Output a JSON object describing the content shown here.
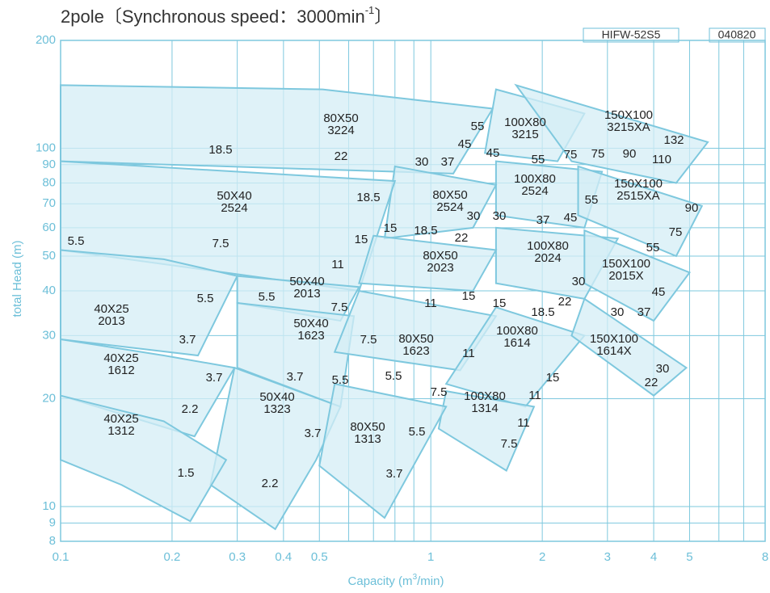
{
  "chart_data": {
    "type": "coverage",
    "title": "2pole〔Synchronous speed：3000min",
    "title_sup": "-1",
    "title_end": "〕",
    "code": "HIFW-52S5",
    "date_code": "040820",
    "x_label": "Capacity (m",
    "x_label_sup": "3",
    "x_label_end": "/min)",
    "y_label": "total Head (m)",
    "log_x": true,
    "log_y": true,
    "grid": true,
    "xlim": [
      0.1,
      8
    ],
    "ylim": [
      8,
      200
    ],
    "xticks": [
      0.1,
      0.2,
      0.3,
      0.4,
      0.5,
      1,
      2,
      3,
      4,
      5,
      8
    ],
    "xminor": [
      0.6,
      0.7,
      0.8,
      0.9,
      6,
      7
    ],
    "yticks": [
      8,
      9,
      10,
      20,
      30,
      40,
      50,
      60,
      70,
      80,
      90,
      100,
      200
    ],
    "fill": "#d4edf5",
    "edge": "#7ec8de",
    "regions": [
      {
        "name": [
          "80X50",
          "3224"
        ],
        "capacity": [
          0.1,
          0.51,
          1.47,
          1.15,
          0.1
        ],
        "head": [
          150,
          146,
          129,
          85,
          92
        ]
      },
      {
        "name": [
          "100X80",
          "3215"
        ],
        "capacity": [
          1.5,
          2.6,
          2.2,
          1.4
        ],
        "head": [
          146,
          125,
          92,
          97
        ]
      },
      {
        "name": [
          "150X100",
          "3215XA"
        ],
        "capacity": [
          1.7,
          5.6,
          4.6,
          2.4
        ],
        "head": [
          150,
          104,
          80,
          92
        ]
      },
      {
        "name": [
          "100X80",
          "2524"
        ],
        "capacity": [
          1.5,
          2.9,
          2.6,
          1.5
        ],
        "head": [
          92,
          86,
          60,
          65
        ]
      },
      {
        "name": [
          "150X100",
          "2515XA"
        ],
        "capacity": [
          2.5,
          5.4,
          4.6,
          2.5
        ],
        "head": [
          89,
          69,
          50,
          65
        ]
      },
      {
        "name": [
          "80X50",
          "2524"
        ],
        "capacity": [
          0.8,
          1.5,
          1.3,
          0.75
        ],
        "head": [
          89,
          79,
          60,
          56
        ]
      },
      {
        "name": [
          "50X40",
          "2524"
        ],
        "capacity": [
          0.1,
          0.8,
          0.64,
          0.1
        ],
        "head": [
          92,
          81,
          40,
          52
        ]
      },
      {
        "name": [
          "100X80",
          "2024"
        ],
        "capacity": [
          1.5,
          3.2,
          2.6,
          1.5
        ],
        "head": [
          60,
          56,
          38,
          42
        ]
      },
      {
        "name": [
          "80X50",
          "2023"
        ],
        "capacity": [
          0.7,
          1.5,
          1.3,
          0.64
        ],
        "head": [
          57,
          52,
          40,
          42
        ]
      },
      {
        "name": [
          "150X100",
          "2015X"
        ],
        "capacity": [
          2.6,
          5.0,
          4.0,
          2.6
        ],
        "head": [
          59,
          45,
          33,
          42
        ]
      },
      {
        "name": [
          "50X40",
          "2013"
        ],
        "capacity": [
          0.3,
          0.64,
          0.57,
          0.3
        ],
        "head": [
          44,
          41,
          33,
          37
        ]
      },
      {
        "name": [
          "40X25",
          "2013"
        ],
        "capacity": [
          0.1,
          0.19,
          0.3,
          0.235,
          0.1
        ],
        "head": [
          52,
          49,
          44,
          26.4,
          29.3
        ]
      },
      {
        "name": [
          "50X40",
          "1623"
        ],
        "capacity": [
          0.3,
          0.62,
          0.57,
          0.3
        ],
        "head": [
          37,
          34,
          19,
          24.4
        ]
      },
      {
        "name": [
          "80X50",
          "1623"
        ],
        "capacity": [
          0.64,
          1.5,
          1.2,
          0.55
        ],
        "head": [
          40,
          34,
          24,
          27
        ]
      },
      {
        "name": [
          "100X80",
          "1614"
        ],
        "capacity": [
          1.5,
          2.6,
          1.8,
          1.1
        ],
        "head": [
          36,
          30,
          19,
          22
        ]
      },
      {
        "name": [
          "150X100",
          "1614X"
        ],
        "capacity": [
          2.6,
          4.9,
          4.0,
          2.4
        ],
        "head": [
          38,
          24.4,
          20.4,
          30
        ]
      },
      {
        "name": [
          "40X25",
          "1612"
        ],
        "capacity": [
          0.1,
          0.19,
          0.295,
          0.23,
          0.1
        ],
        "head": [
          29.3,
          26.4,
          24.4,
          15.7,
          20.4
        ]
      },
      {
        "name": [
          "50X40",
          "1323"
        ],
        "capacity": [
          0.295,
          0.57,
          0.49,
          0.38,
          0.254
        ],
        "head": [
          24.4,
          19,
          13.5,
          8.65,
          11.5
        ]
      },
      {
        "name": [
          "100X80",
          "1314"
        ],
        "capacity": [
          1.1,
          1.9,
          1.6,
          1.05
        ],
        "head": [
          21,
          19,
          12.6,
          16.5
        ]
      },
      {
        "name": [
          "40X25",
          "1312"
        ],
        "capacity": [
          0.1,
          0.19,
          0.28,
          0.224,
          0.146,
          0.1
        ],
        "head": [
          20.4,
          17.3,
          13.5,
          9.1,
          11.5,
          13.5
        ]
      },
      {
        "name": [
          "80X50",
          "1313"
        ],
        "capacity": [
          0.55,
          1.1,
          0.75,
          0.5
        ],
        "head": [
          22,
          19,
          9.3,
          13
        ]
      }
    ],
    "kw_labels": [
      "18.5",
      "22",
      "30",
      "37",
      "45",
      "55",
      "45",
      "55",
      "75",
      "75",
      "90",
      "110",
      "132",
      "18.5",
      "15",
      "15",
      "18.5",
      "22",
      "30",
      "30",
      "37",
      "45",
      "55",
      "90",
      "75",
      "55",
      "5.5",
      "7.5",
      "11",
      "30",
      "22",
      "18.5",
      "15",
      "15",
      "11",
      "45",
      "37",
      "30",
      "7.5",
      "5.5",
      "5.5",
      "3.7",
      "7.5",
      "11",
      "3.7",
      "3.7",
      "5.5",
      "5.5",
      "7.5",
      "15",
      "11",
      "30",
      "22",
      "2.2",
      "3.7",
      "5.5",
      "11",
      "7.5",
      "1.5",
      "2.2",
      "3.7"
    ]
  }
}
